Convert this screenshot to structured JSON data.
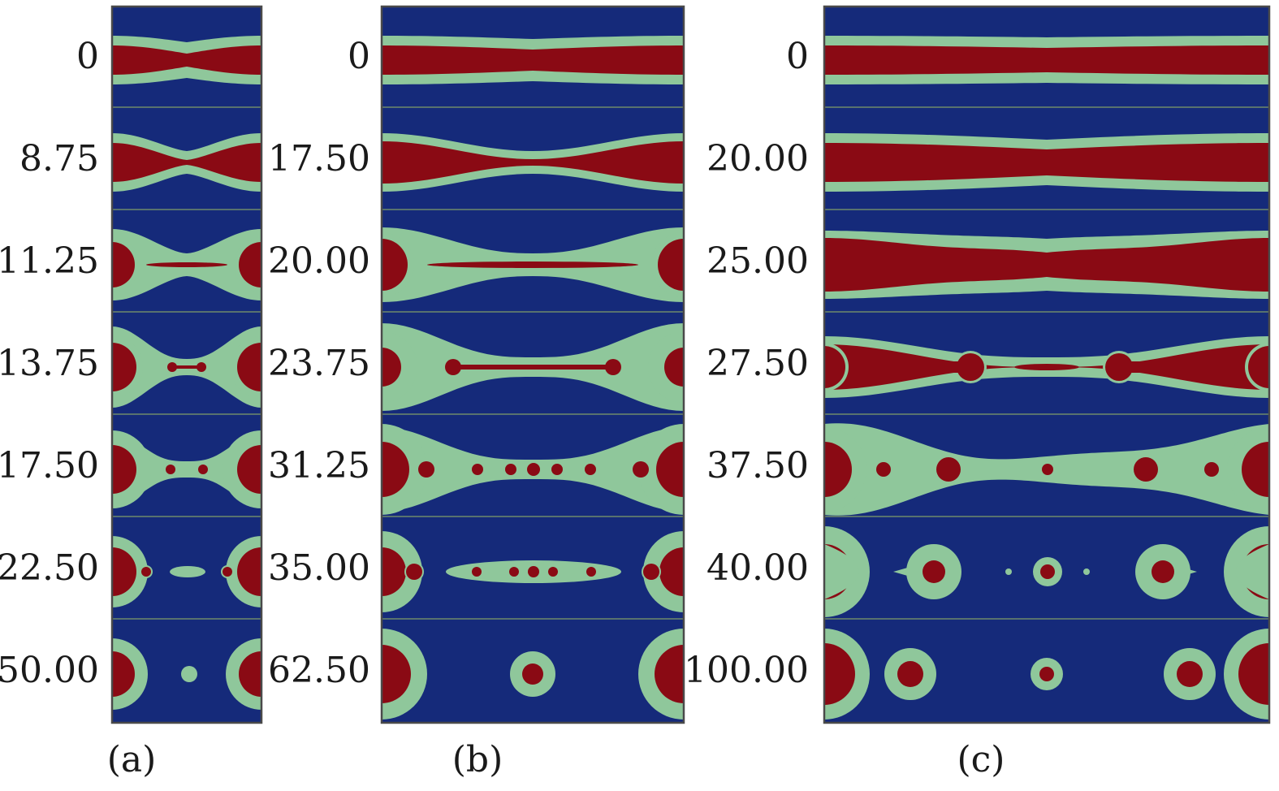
{
  "colors": {
    "background": "#152a7a",
    "shell": "#8fc79b",
    "core": "#8a0a14",
    "frame": "#4a4a4a",
    "separator": "#6f8a6a"
  },
  "panels": [
    {
      "id": "a",
      "caption": "(a)",
      "times": [
        "0",
        "8.75",
        "11.25",
        "13.75",
        "17.50",
        "22.50",
        "50.00"
      ]
    },
    {
      "id": "b",
      "caption": "(b)",
      "times": [
        "0",
        "17.50",
        "20.00",
        "23.75",
        "31.25",
        "35.00",
        "62.50"
      ]
    },
    {
      "id": "c",
      "caption": "(c)",
      "times": [
        "0",
        "20.00",
        "25.00",
        "27.50",
        "37.50",
        "40.00",
        "100.00"
      ]
    }
  ]
}
